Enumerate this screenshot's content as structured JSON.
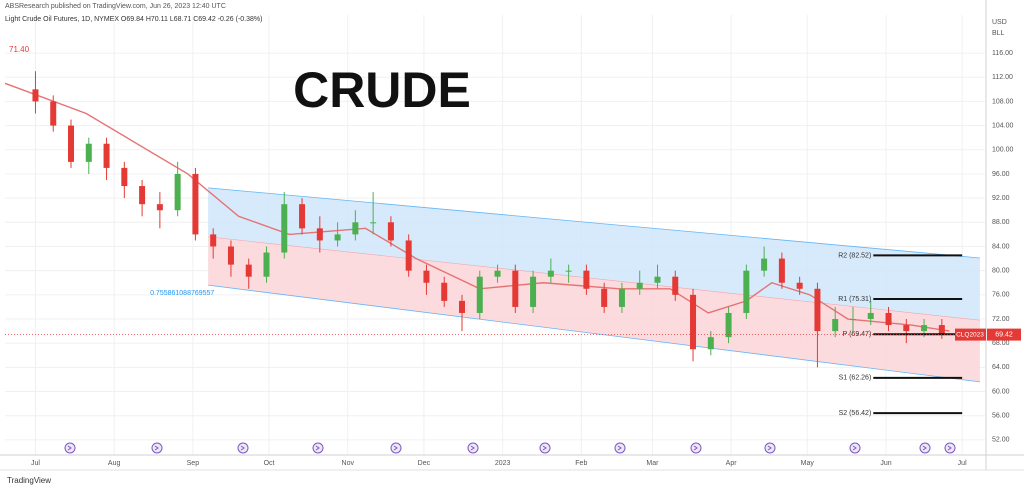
{
  "chart_data": {
    "type": "candlestick",
    "publisher": "ABSResearch published on TradingView.com, Jun 26, 2023 12:40 UTC",
    "subtitle": "Light Crude Oil Futures, 1D, NYMEX O69.84 H70.11 L68.71 C69.42 -0.26 (-0.38%)",
    "title": "CRUDE",
    "corner_label": "71.40",
    "currency": "USD",
    "unit": "BLL",
    "symbol_label": "CLQ2023",
    "footer": "TradingView",
    "up_color": "#4caf50",
    "down_color": "#e53935",
    "grid": true,
    "xlim": [
      -12,
      374
    ],
    "ylim": [
      49.5,
      122.3
    ],
    "xticks": [
      {
        "value": 0,
        "label": "Jul"
      },
      {
        "value": 31,
        "label": "Aug"
      },
      {
        "value": 62,
        "label": "Sep"
      },
      {
        "value": 92,
        "label": "Oct"
      },
      {
        "value": 123,
        "label": "Nov"
      },
      {
        "value": 153,
        "label": "Dec"
      },
      {
        "value": 184,
        "label": "2023"
      },
      {
        "value": 215,
        "label": "Feb"
      },
      {
        "value": 243,
        "label": "Mar"
      },
      {
        "value": 274,
        "label": "Apr"
      },
      {
        "value": 304,
        "label": "May"
      },
      {
        "value": 335,
        "label": "Jun"
      },
      {
        "value": 365,
        "label": "Jul"
      }
    ],
    "yticks": [
      {
        "value": 52,
        "label": "52.00"
      },
      {
        "value": 56,
        "label": "56.00"
      },
      {
        "value": 60,
        "label": "60.00"
      },
      {
        "value": 64,
        "label": "64.00"
      },
      {
        "value": 68,
        "label": "68.00"
      },
      {
        "value": 72,
        "label": "72.00"
      },
      {
        "value": 76,
        "label": "76.00"
      },
      {
        "value": 80,
        "label": "80.00"
      },
      {
        "value": 84,
        "label": "84.00"
      },
      {
        "value": 88,
        "label": "88.00"
      },
      {
        "value": 92,
        "label": "92.00"
      },
      {
        "value": 96,
        "label": "96.00"
      },
      {
        "value": 100,
        "label": "100.00"
      },
      {
        "value": 104,
        "label": "104.00"
      },
      {
        "value": 108,
        "label": "108.00"
      },
      {
        "value": 112,
        "label": "112.00"
      },
      {
        "value": 116,
        "label": "116.00"
      }
    ],
    "candles": {
      "x": [
        0,
        7,
        14,
        21,
        28,
        35,
        42,
        49,
        56,
        63,
        70,
        77,
        84,
        91,
        98,
        105,
        112,
        119,
        126,
        133,
        140,
        147,
        154,
        161,
        168,
        175,
        182,
        189,
        196,
        203,
        210,
        217,
        224,
        231,
        238,
        245,
        252,
        259,
        266,
        273,
        280,
        287,
        294,
        301,
        308,
        315,
        322,
        329,
        336,
        343,
        350,
        357
      ],
      "open": [
        110,
        108,
        104,
        98,
        101,
        97,
        94,
        91,
        90,
        96,
        86,
        84,
        81,
        79,
        83,
        91,
        87,
        85,
        86,
        88,
        88,
        85,
        80,
        78,
        75,
        73,
        79,
        80,
        74,
        79,
        80,
        80,
        77,
        74,
        77,
        78,
        79,
        76,
        67,
        69,
        73,
        80,
        82,
        78,
        77,
        70,
        72,
        72,
        73,
        71,
        70,
        71
      ],
      "high": [
        113,
        109,
        105,
        102,
        102,
        98,
        95,
        93,
        98,
        97,
        87,
        85,
        82,
        84,
        93,
        92,
        89,
        88,
        90,
        93,
        89,
        86,
        81,
        79,
        76,
        80,
        81,
        81,
        80,
        82,
        81,
        81,
        78,
        78,
        80,
        81,
        80,
        77,
        70,
        74,
        81,
        84,
        83,
        79,
        78,
        74,
        74,
        75,
        74,
        72,
        72,
        72
      ],
      "low": [
        106,
        103,
        97,
        96,
        95,
        92,
        89,
        87,
        89,
        85,
        82,
        79,
        77,
        78,
        82,
        86,
        83,
        84,
        85,
        86,
        84,
        79,
        76,
        74,
        70,
        72,
        78,
        73,
        73,
        78,
        78,
        76,
        73,
        73,
        76,
        77,
        75,
        65,
        66,
        68,
        72,
        79,
        77,
        76,
        64,
        69,
        70,
        71,
        70,
        68,
        69,
        68.71
      ],
      "close": [
        108,
        104,
        98,
        101,
        97,
        94,
        91,
        90,
        96,
        86,
        84,
        81,
        79,
        83,
        91,
        87,
        85,
        86,
        88,
        88,
        85,
        80,
        78,
        75,
        73,
        79,
        80,
        74,
        79,
        80,
        80,
        77,
        74,
        77,
        78,
        79,
        76,
        67,
        69,
        73,
        80,
        82,
        78,
        77,
        70,
        72,
        72,
        73,
        71,
        70,
        71,
        69.42
      ]
    },
    "ma": {
      "color": "#e57373",
      "x": [
        -12,
        20,
        60,
        80,
        100,
        130,
        150,
        175,
        200,
        230,
        250,
        265,
        280,
        290,
        305,
        320,
        345,
        360
      ],
      "values": [
        111,
        106,
        96,
        89,
        86,
        87,
        82,
        77,
        78,
        77,
        77,
        73,
        75,
        78,
        76,
        72,
        71,
        70
      ]
    },
    "channel": {
      "x": [
        68,
        372
      ],
      "upper": [
        93.7,
        82.1
      ],
      "middle": [
        85.6,
        71.8
      ],
      "lower": [
        77.6,
        61.6
      ],
      "label": "0.755861088769557"
    },
    "pivot_x": [
      330,
      365
    ],
    "pivots": [
      {
        "label": "R2 (82.52)",
        "value": 82.52
      },
      {
        "label": "R1 (75.31)",
        "value": 75.31
      },
      {
        "label": "P (69.47)",
        "value": 69.47
      },
      {
        "label": "S1 (62.26)",
        "value": 62.26
      },
      {
        "label": "S2 (56.42)",
        "value": 56.42
      }
    ]
  }
}
